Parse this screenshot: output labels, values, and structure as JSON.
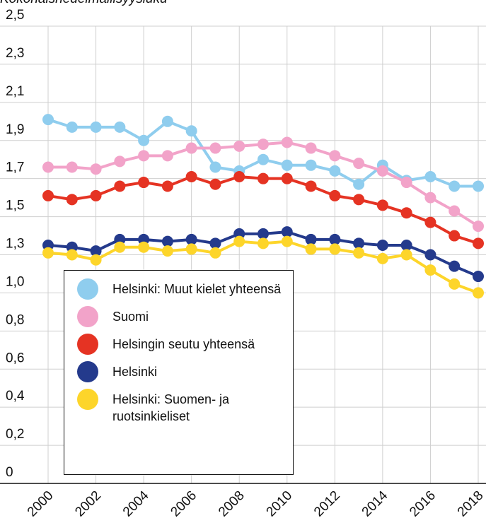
{
  "chart_data": {
    "type": "line",
    "title": "Kokonaishedelmällisyysluku",
    "x": [
      2000,
      2001,
      2002,
      2003,
      2004,
      2005,
      2006,
      2007,
      2008,
      2009,
      2010,
      2011,
      2012,
      2013,
      2014,
      2015,
      2016,
      2017,
      2018
    ],
    "xlim": [
      2000,
      2018
    ],
    "xticks": [
      2000,
      2002,
      2004,
      2006,
      2008,
      2010,
      2012,
      2014,
      2016,
      2018
    ],
    "ylim": [
      0,
      2.5
    ],
    "yticks": [
      0,
      {
        "value": 0.2,
        "label": "0,2"
      },
      {
        "value": 0.4,
        "label": "0,4"
      },
      {
        "value": 0.6,
        "label": "0,6"
      },
      {
        "value": 0.8,
        "label": "0,8"
      },
      {
        "value": 1.0,
        "label": "1,0"
      },
      {
        "value": 1.3,
        "label": "1,3"
      },
      {
        "value": 1.5,
        "label": "1,5"
      },
      {
        "value": 1.7,
        "label": "1,7"
      },
      {
        "value": 1.9,
        "label": "1,9"
      },
      {
        "value": 2.1,
        "label": "2,1"
      },
      {
        "value": 2.3,
        "label": "2,3"
      },
      {
        "value": 2.5,
        "label": "2,5"
      }
    ],
    "grid": true,
    "series": [
      {
        "name": "Helsinki: Muut kielet yhteensä",
        "color": "#8fcdee",
        "values": [
          2.01,
          1.97,
          1.97,
          1.97,
          1.9,
          2.0,
          1.95,
          1.76,
          1.74,
          1.8,
          1.77,
          1.77,
          1.74,
          1.67,
          1.77,
          1.69,
          1.71,
          1.66,
          1.66
        ]
      },
      {
        "name": "Suomi",
        "color": "#f2a3c9",
        "values": [
          1.76,
          1.76,
          1.75,
          1.79,
          1.82,
          1.82,
          1.86,
          1.86,
          1.87,
          1.88,
          1.89,
          1.86,
          1.82,
          1.78,
          1.74,
          1.68,
          1.6,
          1.53,
          1.45
        ]
      },
      {
        "name": "Helsingin seutu yhteensä",
        "color": "#e53323",
        "values": [
          1.61,
          1.59,
          1.61,
          1.66,
          1.68,
          1.66,
          1.71,
          1.67,
          1.71,
          1.7,
          1.7,
          1.66,
          1.61,
          1.59,
          1.56,
          1.52,
          1.47,
          1.4,
          1.36
        ]
      },
      {
        "name": "Helsinki",
        "color": "#243a8c",
        "values": [
          1.35,
          1.34,
          1.32,
          1.38,
          1.38,
          1.37,
          1.38,
          1.36,
          1.41,
          1.41,
          1.42,
          1.38,
          1.38,
          1.36,
          1.35,
          1.35,
          1.3,
          1.21,
          1.13
        ]
      },
      {
        "name": "Helsinki: Suomen- ja ruotsinkieliset",
        "color": "#fdd52a",
        "values": [
          1.31,
          1.3,
          1.26,
          1.34,
          1.34,
          1.32,
          1.33,
          1.31,
          1.37,
          1.36,
          1.37,
          1.33,
          1.33,
          1.31,
          1.27,
          1.3,
          1.18,
          1.07,
          1.0
        ]
      }
    ]
  }
}
